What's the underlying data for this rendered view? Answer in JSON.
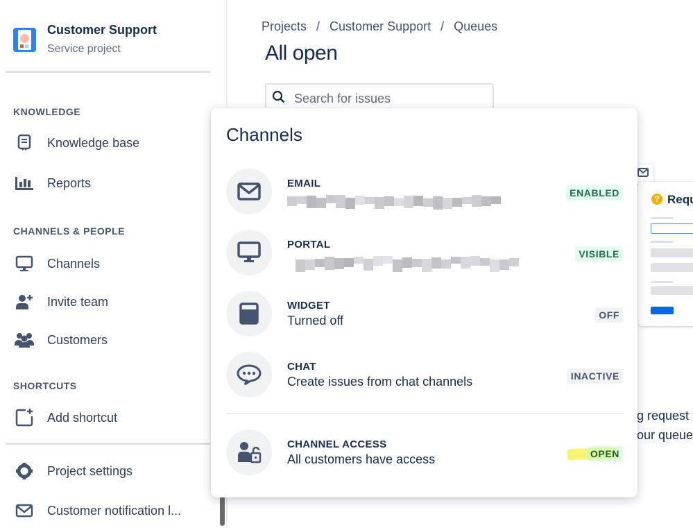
{
  "sidebar": {
    "project_title": "Customer Support",
    "project_subtitle": "Service project",
    "sections": {
      "knowledge": "KNOWLEDGE",
      "channels_people": "CHANNELS & PEOPLE",
      "shortcuts": "SHORTCUTS"
    },
    "items": [
      {
        "label": "Knowledge base",
        "icon": "knowledge-base-icon"
      },
      {
        "label": "Reports",
        "icon": "bar-chart-icon"
      },
      {
        "label": "Channels",
        "icon": "monitor-icon"
      },
      {
        "label": "Invite team",
        "icon": "person-add-icon"
      },
      {
        "label": "Customers",
        "icon": "people-group-icon"
      },
      {
        "label": "Add shortcut",
        "icon": "add-shortcut-icon"
      },
      {
        "label": "Project settings",
        "icon": "gear-icon"
      },
      {
        "label": "Customer notification l...",
        "icon": "email-icon"
      }
    ]
  },
  "main": {
    "breadcrumbs": [
      "Projects",
      "Customer Support",
      "Queues"
    ],
    "breadcrumb_separator": "/",
    "title": "All open",
    "search_placeholder": "Search for issues",
    "card_heading": "Requ",
    "bg_text": [
      "g request",
      "our queue"
    ]
  },
  "channels_popup": {
    "title": "Channels",
    "rows": [
      {
        "title": "EMAIL",
        "subtitle": "",
        "badge": "ENABLED",
        "icon": "email-icon",
        "badge_style": "green"
      },
      {
        "title": "PORTAL",
        "subtitle": "",
        "badge": "VISIBLE",
        "icon": "monitor-icon",
        "badge_style": "green"
      },
      {
        "title": "WIDGET",
        "subtitle": "Turned off",
        "badge": "OFF",
        "icon": "widget-icon",
        "badge_style": "gray"
      },
      {
        "title": "CHAT",
        "subtitle": "Create issues from chat channels",
        "badge": "INACTIVE",
        "icon": "chat-icon",
        "badge_style": "gray"
      },
      {
        "title": "CHANNEL ACCESS",
        "subtitle": "All customers have access",
        "badge": "OPEN",
        "icon": "person-unlock-icon",
        "badge_style": "green-highlighted"
      }
    ]
  },
  "colors": {
    "accent": "#0c66e4",
    "badge_green_bg": "#e3fcef",
    "badge_green_text": "#216e4e",
    "highlight": "#f5f55a"
  }
}
